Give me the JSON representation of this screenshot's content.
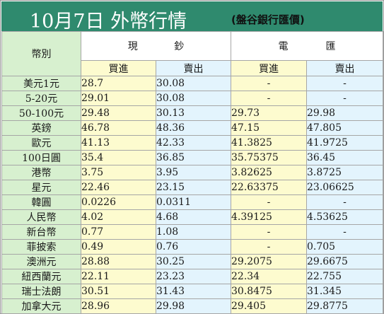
{
  "title": "10月7日 外幣行情",
  "subtitle": "(盤谷銀行匯價)",
  "headers": {
    "currency": "幣別",
    "cash_left": "現",
    "cash_right": "鈔",
    "remit_left": "電",
    "remit_right": "匯",
    "buy": "買進",
    "sell": "賣出"
  },
  "rows": [
    {
      "name": "美元1元",
      "cash_buy": "28.7",
      "cash_sell": "30.08",
      "tt_buy": "-",
      "tt_sell": "-"
    },
    {
      "name": "5-20元",
      "cash_buy": "29.01",
      "cash_sell": "30.08",
      "tt_buy": "-",
      "tt_sell": "-"
    },
    {
      "name": "50-100元",
      "cash_buy": "29.48",
      "cash_sell": "30.13",
      "tt_buy": "29.73",
      "tt_sell": "29.98"
    },
    {
      "name": "英鎊",
      "cash_buy": "46.78",
      "cash_sell": "48.36",
      "tt_buy": "47.15",
      "tt_sell": "47.805"
    },
    {
      "name": "歐元",
      "cash_buy": "41.13",
      "cash_sell": "42.33",
      "tt_buy": "41.3825",
      "tt_sell": "41.9725"
    },
    {
      "name": "100日圓",
      "cash_buy": "35.4",
      "cash_sell": "36.85",
      "tt_buy": "35.75375",
      "tt_sell": "36.45"
    },
    {
      "name": "港幣",
      "cash_buy": "3.75",
      "cash_sell": "3.95",
      "tt_buy": "3.82625",
      "tt_sell": "3.8725"
    },
    {
      "name": "星元",
      "cash_buy": "22.46",
      "cash_sell": "23.15",
      "tt_buy": "22.63375",
      "tt_sell": "23.06625"
    },
    {
      "name": "韓圓",
      "cash_buy": "0.0226",
      "cash_sell": "0.0311",
      "tt_buy": "-",
      "tt_sell": "-"
    },
    {
      "name": "人民幣",
      "cash_buy": "4.02",
      "cash_sell": "4.68",
      "tt_buy": "4.39125",
      "tt_sell": "4.53625"
    },
    {
      "name": "新台幣",
      "cash_buy": "0.77",
      "cash_sell": "1.08",
      "tt_buy": "-",
      "tt_sell": "-"
    },
    {
      "name": "菲披索",
      "cash_buy": "0.49",
      "cash_sell": "0.76",
      "tt_buy": "-",
      "tt_sell": "0.705"
    },
    {
      "name": "澳洲元",
      "cash_buy": "28.88",
      "cash_sell": "30.25",
      "tt_buy": "29.2075",
      "tt_sell": "29.6675"
    },
    {
      "name": "紐西蘭元",
      "cash_buy": "22.11",
      "cash_sell": "23.23",
      "tt_buy": "22.34",
      "tt_sell": "22.755"
    },
    {
      "name": "瑞士法朗",
      "cash_buy": "30.51",
      "cash_sell": "31.43",
      "tt_buy": "30.8475",
      "tt_sell": "31.345"
    },
    {
      "name": "加拿大元",
      "cash_buy": "28.96",
      "cash_sell": "29.98",
      "tt_buy": "29.405",
      "tt_sell": "29.8775"
    }
  ],
  "colors": {
    "header_bg": "#2f8a6e",
    "name_bg": "#d7f0cf",
    "yellow_bg": "#fdfbcf",
    "blue_bg": "#e3f4fd"
  }
}
